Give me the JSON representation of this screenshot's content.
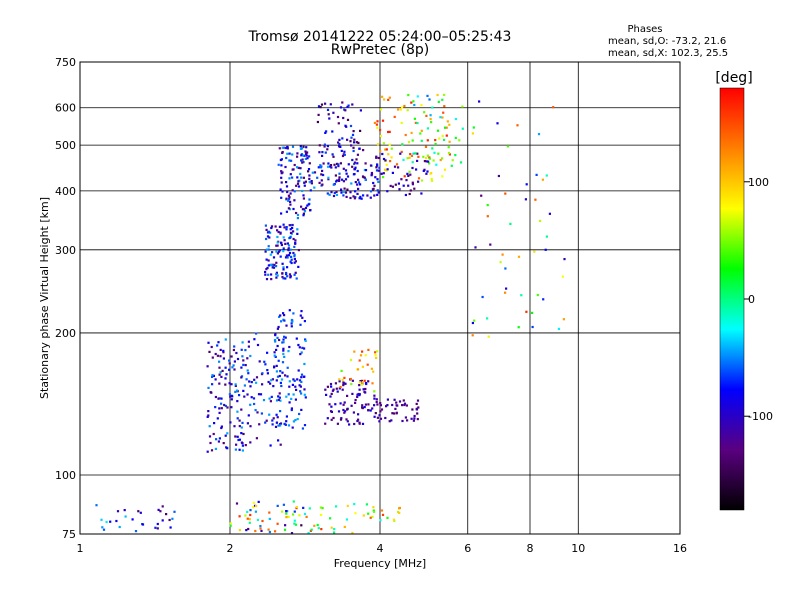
{
  "chart_data": {
    "type": "scatter",
    "title": "Tromsø 20141222 05:24:00–05:25:43",
    "subtitle": "RwPretec (8p)",
    "xlabel": "Frequency [MHz]",
    "ylabel": "Stationary phase Virtual Height [km]",
    "x_scale": "log",
    "y_scale": "log",
    "xlim": [
      1,
      16
    ],
    "ylim": [
      75,
      750
    ],
    "x_ticks": [
      1,
      2,
      4,
      6,
      8,
      10,
      16
    ],
    "y_ticks": [
      75,
      100,
      200,
      300,
      400,
      500,
      600,
      750
    ],
    "grid": true,
    "legend": {
      "title": "Phases",
      "lines": [
        "mean, sd,O: -73.2, 21.6",
        "mean, sd,X: 102.3, 25.5"
      ],
      "placement": "top-right"
    },
    "colorbar": {
      "label": "[deg]",
      "ticks": [
        100,
        0,
        -100
      ],
      "range": [
        -180,
        180
      ],
      "colors": [
        "#000000",
        "#5a0080",
        "#0000ff",
        "#00ffff",
        "#00ff00",
        "#ffff00",
        "#ff7f00",
        "#ff0000"
      ]
    },
    "clusters": [
      {
        "f": [
          1.0,
          1.55
        ],
        "h": [
          75,
          88
        ],
        "phase": [
          -140,
          -20
        ],
        "n": 30
      },
      {
        "f": [
          2.0,
          2.9
        ],
        "h": [
          75,
          88
        ],
        "phase": [
          -160,
          170
        ],
        "n": 60
      },
      {
        "f": [
          2.9,
          4.4
        ],
        "h": [
          75,
          88
        ],
        "phase": [
          -30,
          160
        ],
        "n": 40
      },
      {
        "f": [
          1.8,
          2.15
        ],
        "h": [
          112,
          195
        ],
        "phase": [
          -140,
          -40
        ],
        "n": 130
      },
      {
        "f": [
          2.15,
          2.6
        ],
        "h": [
          115,
          200
        ],
        "phase": [
          -130,
          -40
        ],
        "n": 80
      },
      {
        "f": [
          2.45,
          2.85
        ],
        "h": [
          125,
          225
        ],
        "phase": [
          -100,
          -40
        ],
        "n": 110
      },
      {
        "f": [
          3.1,
          3.9
        ],
        "h": [
          128,
          160
        ],
        "phase": [
          -140,
          -80
        ],
        "n": 90
      },
      {
        "f": [
          3.9,
          4.8
        ],
        "h": [
          130,
          145
        ],
        "phase": [
          -140,
          -100
        ],
        "n": 50
      },
      {
        "f": [
          3.3,
          4.0
        ],
        "h": [
          150,
          185
        ],
        "phase": [
          40,
          170
        ],
        "n": 30
      },
      {
        "f": [
          2.35,
          2.75
        ],
        "h": [
          260,
          340
        ],
        "phase": [
          -130,
          -40
        ],
        "n": 130
      },
      {
        "f": [
          2.5,
          2.9
        ],
        "h": [
          350,
          500
        ],
        "phase": [
          -140,
          -40
        ],
        "n": 120
      },
      {
        "f": [
          2.9,
          4.0
        ],
        "h": [
          385,
          460
        ],
        "phase": [
          -140,
          -40
        ],
        "n": 120
      },
      {
        "f": [
          3.0,
          3.7
        ],
        "h": [
          460,
          620
        ],
        "phase": [
          -150,
          -60
        ],
        "n": 70
      },
      {
        "f": [
          3.9,
          5.6
        ],
        "h": [
          420,
          640
        ],
        "phase": [
          30,
          170
        ],
        "n": 90
      },
      {
        "f": [
          3.8,
          5.0
        ],
        "h": [
          390,
          480
        ],
        "phase": [
          -140,
          -80
        ],
        "n": 50
      },
      {
        "f": [
          4.4,
          5.9
        ],
        "h": [
          450,
          640
        ],
        "phase": [
          -60,
          60
        ],
        "n": 40
      },
      {
        "f": [
          6.0,
          9.6
        ],
        "h": [
          180,
          640
        ],
        "phase": [
          -130,
          170
        ],
        "n": 50
      }
    ]
  }
}
